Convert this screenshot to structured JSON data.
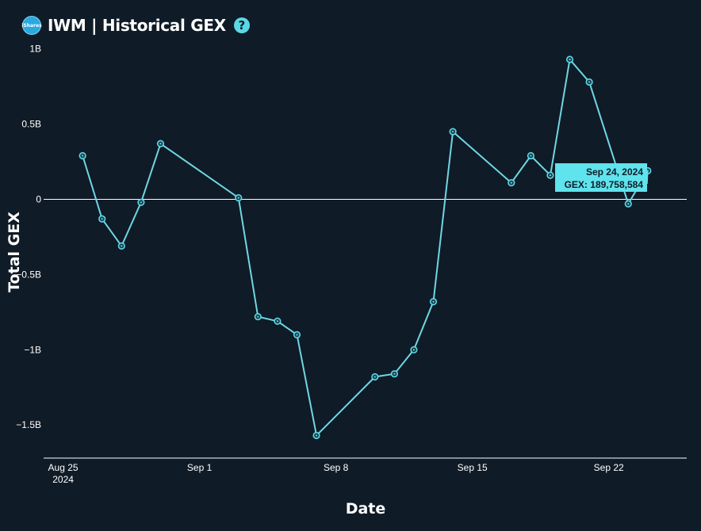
{
  "header": {
    "logo_text": "iShares",
    "title": "IWM | Historical GEX",
    "help_glyph": "?"
  },
  "colors": {
    "background": "#0f1b27",
    "line": "#6fd7e3",
    "marker": "#5ad8e6",
    "tooltip_bg": "#5fe3ec"
  },
  "chart_data": {
    "type": "line",
    "xlabel": "Date",
    "ylabel": "Total GEX",
    "ylim": [
      -1.72,
      1.03
    ],
    "y_unit": "B",
    "xlim": [
      "2024-08-24",
      "2024-09-26"
    ],
    "y_ticks": [
      {
        "value": 1,
        "label": "1B"
      },
      {
        "value": 0.5,
        "label": "0.5B"
      },
      {
        "value": 0,
        "label": "0"
      },
      {
        "value": -0.5,
        "label": "−0.5B"
      },
      {
        "value": -1,
        "label": "−1B"
      },
      {
        "value": -1.5,
        "label": "−1.5B"
      }
    ],
    "x_ticks": [
      {
        "date": "2024-08-25",
        "label": "Aug 25",
        "sublabel": "2024"
      },
      {
        "date": "2024-09-01",
        "label": "Sep 1",
        "sublabel": ""
      },
      {
        "date": "2024-09-08",
        "label": "Sep 8",
        "sublabel": ""
      },
      {
        "date": "2024-09-15",
        "label": "Sep 15",
        "sublabel": ""
      },
      {
        "date": "2024-09-22",
        "label": "Sep 22",
        "sublabel": ""
      }
    ],
    "series": [
      {
        "points": [
          {
            "x": "2024-08-26",
            "y": 0.29
          },
          {
            "x": "2024-08-27",
            "y": -0.13
          },
          {
            "x": "2024-08-28",
            "y": -0.31
          },
          {
            "x": "2024-08-29",
            "y": -0.02
          },
          {
            "x": "2024-08-30",
            "y": 0.37
          },
          {
            "x": "2024-09-03",
            "y": 0.01
          },
          {
            "x": "2024-09-04",
            "y": -0.78
          },
          {
            "x": "2024-09-05",
            "y": -0.81
          },
          {
            "x": "2024-09-06",
            "y": -0.9
          },
          {
            "x": "2024-09-07",
            "y": -1.57
          },
          {
            "x": "2024-09-10",
            "y": -1.18
          },
          {
            "x": "2024-09-11",
            "y": -1.16
          },
          {
            "x": "2024-09-12",
            "y": -1.0
          },
          {
            "x": "2024-09-13",
            "y": -0.68
          },
          {
            "x": "2024-09-14",
            "y": 0.45
          },
          {
            "x": "2024-09-17",
            "y": 0.11
          },
          {
            "x": "2024-09-18",
            "y": 0.29
          },
          {
            "x": "2024-09-19",
            "y": 0.16
          },
          {
            "x": "2024-09-20",
            "y": 0.93
          },
          {
            "x": "2024-09-21",
            "y": 0.78
          },
          {
            "x": "2024-09-23",
            "y": -0.03
          },
          {
            "x": "2024-09-24",
            "y": 0.19
          }
        ]
      }
    ],
    "tooltip": {
      "date_label": "Sep 24, 2024",
      "value_label": "GEX: 189,758,584"
    }
  }
}
